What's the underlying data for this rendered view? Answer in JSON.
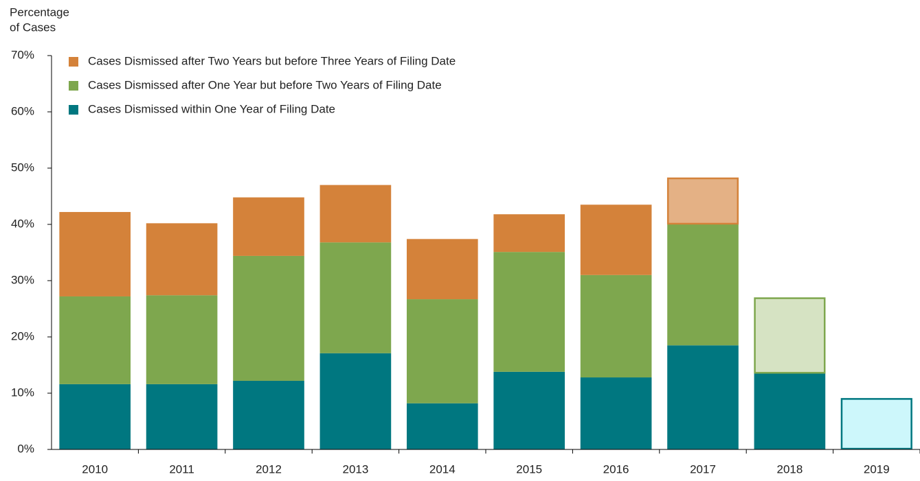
{
  "chart_data": {
    "type": "stacked_bar",
    "y_label": [
      "Percentage",
      "of Cases"
    ],
    "categories": [
      "2010",
      "2011",
      "2012",
      "2013",
      "2014",
      "2015",
      "2016",
      "2017",
      "2018",
      "2019"
    ],
    "series": [
      {
        "name": "Cases Dismissed within One Year of Filing Date",
        "color": "#007780",
        "values": [
          11.6,
          11.6,
          12.2,
          17.1,
          8.2,
          13.8,
          12.8,
          18.5,
          13.5,
          9.1
        ],
        "point_colors": [
          "#007780",
          "#007780",
          "#007780",
          "#007780",
          "#007780",
          "#007780",
          "#007780",
          "#007780",
          "#007780",
          "#cdf7fb"
        ]
      },
      {
        "name": "Cases Dismissed after One Year but before Two Years of Filing Date",
        "color": "#7ea74e",
        "values": [
          15.6,
          15.8,
          22.2,
          19.7,
          18.5,
          21.3,
          18.2,
          21.5,
          13.5,
          null
        ],
        "point_colors": [
          "#7ea74e",
          "#7ea74e",
          "#7ea74e",
          "#7ea74e",
          "#7ea74e",
          "#7ea74e",
          "#7ea74e",
          "#7ea74e",
          "#d6e3c3",
          null
        ]
      },
      {
        "name": "Cases Dismissed after Two Years but before Three Years of Filing Date",
        "color": "#d4823a",
        "values": [
          15.0,
          12.8,
          10.4,
          10.2,
          10.7,
          6.7,
          12.5,
          8.3,
          null,
          null
        ],
        "point_colors": [
          "#d4823a",
          "#d4823a",
          "#d4823a",
          "#d4823a",
          "#d4823a",
          "#d4823a",
          "#d4823a",
          "#e4b185",
          null,
          null
        ]
      }
    ],
    "ylim": [
      0,
      70
    ],
    "yticks": [
      {
        "value": 0,
        "label": "0%"
      },
      {
        "value": 10,
        "label": "10%"
      },
      {
        "value": 20,
        "label": "20%"
      },
      {
        "value": 30,
        "label": "30%"
      },
      {
        "value": 40,
        "label": "40%"
      },
      {
        "value": 50,
        "label": "50%"
      },
      {
        "value": 60,
        "label": "60%"
      },
      {
        "value": 70,
        "label": "70%"
      }
    ],
    "grid": false,
    "legend": "top-left"
  }
}
